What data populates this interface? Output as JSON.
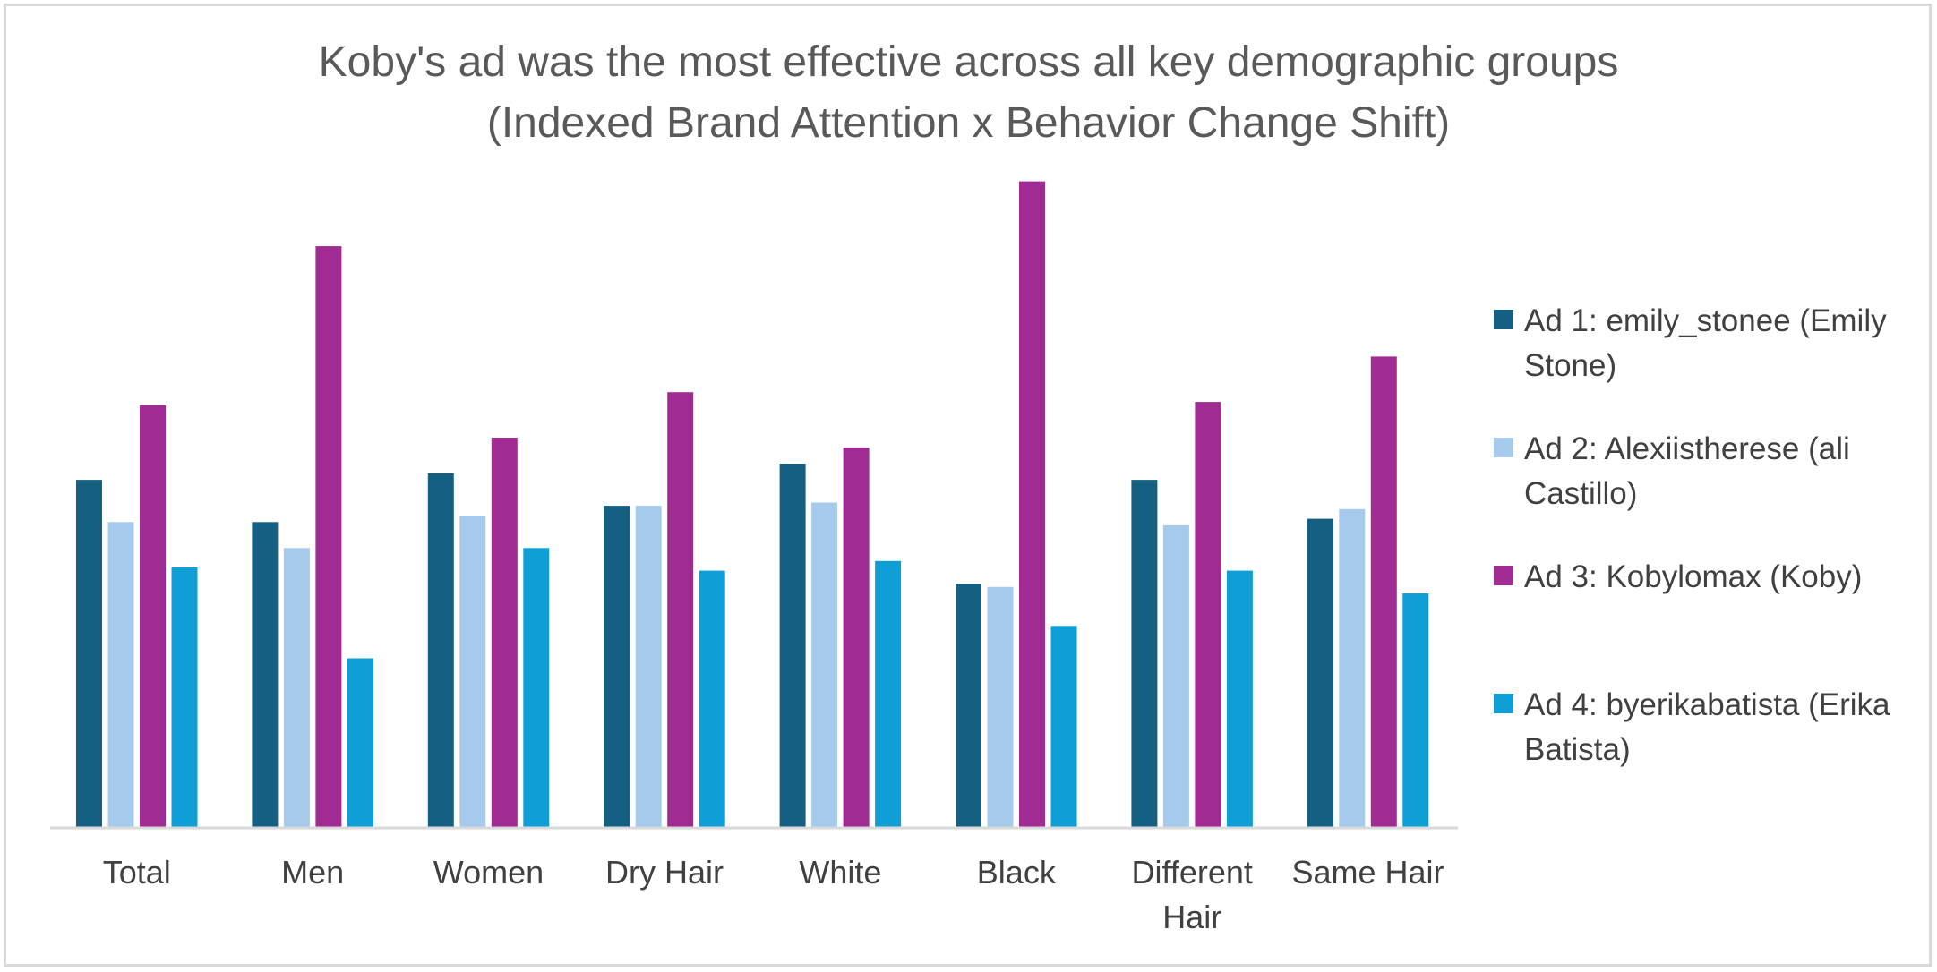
{
  "chart_data": {
    "type": "bar",
    "title": "Koby's ad was the most effective across all key demographic groups",
    "subtitle": "(Indexed Brand Attention x Behavior Change Shift)",
    "categories": [
      [
        "Total"
      ],
      [
        "Men"
      ],
      [
        "Women"
      ],
      [
        "Dry Hair"
      ],
      [
        "White"
      ],
      [
        "Black"
      ],
      [
        "Different",
        "Hair"
      ],
      [
        "Same Hair"
      ]
    ],
    "series": [
      {
        "name": "Ad 1: emily_stonee (Emily Stone)",
        "color": "#156082",
        "values": [
          53.5,
          47,
          54.5,
          49.5,
          56,
          37.5,
          53.5,
          47.5
        ]
      },
      {
        "name": "Ad 2: Alexiistherese (ali Castillo)",
        "color": "#a6caec",
        "values": [
          47,
          43,
          48,
          49.5,
          50,
          37,
          46.5,
          49
        ]
      },
      {
        "name": "Ad 3: Kobylomax (Koby)",
        "color": "#a02b93",
        "values": [
          65,
          89.5,
          60,
          67,
          58.5,
          99.5,
          65.5,
          72.5
        ]
      },
      {
        "name": "Ad 4: byerikabatista (Erika Batista)",
        "color": "#0f9ed5",
        "values": [
          40,
          26,
          43,
          39.5,
          41,
          31,
          39.5,
          36
        ]
      }
    ],
    "ylim": [
      0,
      100
    ],
    "grid": false,
    "legend": "right"
  }
}
